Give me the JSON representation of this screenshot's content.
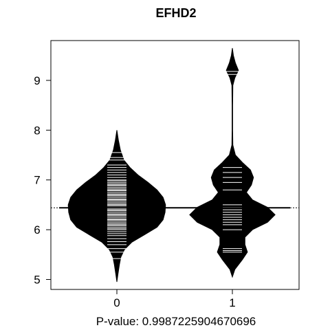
{
  "chart_data": {
    "type": "beanplot",
    "title": "EFHD2",
    "xlabel": "P-value: 0.9987225904670696",
    "categories": [
      "0",
      "1"
    ],
    "ylim": [
      4.8,
      9.8
    ],
    "yticks": [
      5,
      6,
      7,
      8,
      9
    ],
    "overall_reference_line": 6.44,
    "series": [
      {
        "category": "0",
        "mean_line": 6.44,
        "range": [
          4.95,
          8.0
        ],
        "density_profile": [
          [
            4.95,
            0.0
          ],
          [
            5.1,
            0.02
          ],
          [
            5.3,
            0.05
          ],
          [
            5.45,
            0.08
          ],
          [
            5.6,
            0.15
          ],
          [
            5.75,
            0.3
          ],
          [
            5.9,
            0.55
          ],
          [
            6.05,
            0.8
          ],
          [
            6.2,
            0.92
          ],
          [
            6.35,
            0.96
          ],
          [
            6.5,
            0.97
          ],
          [
            6.65,
            0.92
          ],
          [
            6.8,
            0.8
          ],
          [
            6.95,
            0.62
          ],
          [
            7.1,
            0.42
          ],
          [
            7.25,
            0.26
          ],
          [
            7.4,
            0.14
          ],
          [
            7.6,
            0.07
          ],
          [
            7.8,
            0.03
          ],
          [
            8.0,
            0.0
          ]
        ],
        "observations": [
          5.42,
          5.55,
          5.62,
          5.7,
          5.76,
          5.82,
          5.88,
          5.92,
          5.96,
          6.0,
          6.02,
          6.05,
          6.08,
          6.1,
          6.12,
          6.15,
          6.18,
          6.2,
          6.22,
          6.25,
          6.28,
          6.3,
          6.32,
          6.35,
          6.38,
          6.4,
          6.42,
          6.45,
          6.48,
          6.5,
          6.52,
          6.55,
          6.58,
          6.6,
          6.62,
          6.65,
          6.68,
          6.7,
          6.72,
          6.75,
          6.78,
          6.8,
          6.82,
          6.85,
          6.88,
          6.9,
          6.92,
          6.95,
          6.98,
          7.0,
          7.05,
          7.1,
          7.15,
          7.2,
          7.25,
          7.3,
          7.4,
          7.45,
          7.55
        ]
      },
      {
        "category": "1",
        "mean_line": 6.44,
        "range": [
          5.05,
          9.65
        ],
        "density_profile": [
          [
            5.05,
            0.0
          ],
          [
            5.2,
            0.05
          ],
          [
            5.4,
            0.2
          ],
          [
            5.55,
            0.3
          ],
          [
            5.7,
            0.25
          ],
          [
            5.85,
            0.25
          ],
          [
            6.0,
            0.4
          ],
          [
            6.15,
            0.7
          ],
          [
            6.3,
            0.85
          ],
          [
            6.45,
            0.7
          ],
          [
            6.6,
            0.4
          ],
          [
            6.75,
            0.28
          ],
          [
            6.9,
            0.38
          ],
          [
            7.05,
            0.42
          ],
          [
            7.2,
            0.36
          ],
          [
            7.35,
            0.2
          ],
          [
            7.5,
            0.06
          ],
          [
            7.7,
            0.01
          ],
          [
            8.0,
            0.006
          ],
          [
            8.5,
            0.006
          ],
          [
            8.9,
            0.01
          ],
          [
            9.05,
            0.05
          ],
          [
            9.2,
            0.12
          ],
          [
            9.35,
            0.06
          ],
          [
            9.5,
            0.02
          ],
          [
            9.65,
            0.0
          ]
        ],
        "observations": [
          5.55,
          5.58,
          5.62,
          6.0,
          6.1,
          6.15,
          6.2,
          6.25,
          6.3,
          6.35,
          6.4,
          6.45,
          6.5,
          6.8,
          6.95,
          7.05,
          7.15,
          7.25,
          9.12,
          9.18
        ]
      }
    ]
  }
}
